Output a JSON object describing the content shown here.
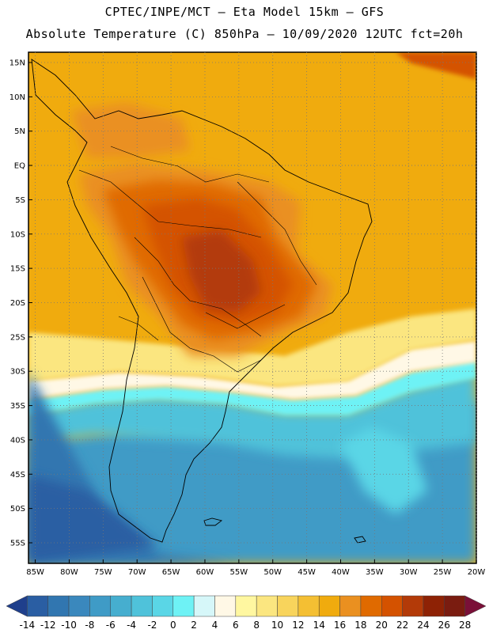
{
  "header": {
    "line1": "CPTEC/INPE/MCT —  Eta Model 15km — GFS",
    "line2": "Absolute Temperature (C) 850hPa — 10/09/2020 12UTC fct=20h"
  },
  "axes": {
    "lat_labels": [
      "15N",
      "10N",
      "5N",
      "EQ",
      "5S",
      "10S",
      "15S",
      "20S",
      "25S",
      "30S",
      "35S",
      "40S",
      "45S",
      "50S",
      "55S"
    ],
    "lon_labels": [
      "85W",
      "80W",
      "75W",
      "70W",
      "65W",
      "60W",
      "55W",
      "50W",
      "45W",
      "40W",
      "35W",
      "30W",
      "25W",
      "20W"
    ],
    "lat_values": [
      15,
      10,
      5,
      0,
      -5,
      -10,
      -15,
      -20,
      -25,
      -30,
      -35,
      -40,
      -45,
      -50,
      -55
    ],
    "lon_values": [
      -85,
      -80,
      -75,
      -70,
      -65,
      -60,
      -55,
      -50,
      -45,
      -40,
      -35,
      -30,
      -25,
      -20
    ],
    "lat_range": [
      -58,
      16.5
    ],
    "lon_range": [
      -86,
      -20
    ],
    "grid": "dotted"
  },
  "colorbar": {
    "labels": [
      "-14",
      "-12",
      "-10",
      "-8",
      "-6",
      "-4",
      "-2",
      "0",
      "2",
      "4",
      "6",
      "8",
      "10",
      "12",
      "14",
      "16",
      "18",
      "20",
      "22",
      "24",
      "26",
      "28"
    ],
    "colors": [
      "#1f3f8c",
      "#2a5ea3",
      "#3176b0",
      "#3a88bd",
      "#3f9bc6",
      "#46aecf",
      "#4fc2da",
      "#5ad6e6",
      "#6ef2f5",
      "#d6f7f9",
      "#fff8e6",
      "#fff7a0",
      "#fbe680",
      "#f8d45c",
      "#f4bf33",
      "#f0ab0e",
      "#ea9020",
      "#e06a00",
      "#d45200",
      "#b33a08",
      "#8e2205",
      "#7a1c10",
      "#7a1038"
    ]
  }
}
